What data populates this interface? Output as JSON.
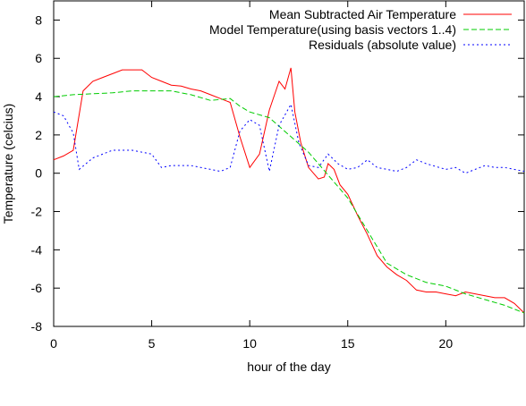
{
  "chart_data": {
    "type": "line",
    "title": "",
    "xlabel": "hour of the day",
    "ylabel": "Temperature (celcius)",
    "xlim": [
      0,
      24
    ],
    "ylim": [
      -8,
      9
    ],
    "x_ticks": [
      0,
      5,
      10,
      15,
      20
    ],
    "x_tick_labels": [
      "0",
      "5",
      "10",
      "15",
      "20"
    ],
    "y_ticks": [
      -8,
      -6,
      -4,
      -2,
      0,
      2,
      4,
      6,
      8
    ],
    "y_tick_labels": [
      "-8",
      "-6",
      "-4",
      "-2",
      "0",
      "2",
      "4",
      "6",
      "8"
    ],
    "grid": false,
    "legend_position": "top-right",
    "series": [
      {
        "name": "Mean Subtracted Air Temperature",
        "color": "#ff0000",
        "dash": "solid",
        "points": [
          [
            0,
            0.7
          ],
          [
            0.5,
            0.9
          ],
          [
            1,
            1.2
          ],
          [
            1.5,
            4.3
          ],
          [
            2,
            4.8
          ],
          [
            2.5,
            5.0
          ],
          [
            3,
            5.2
          ],
          [
            3.5,
            5.4
          ],
          [
            4,
            5.4
          ],
          [
            4.5,
            5.4
          ],
          [
            5,
            5.0
          ],
          [
            5.5,
            4.8
          ],
          [
            6,
            4.6
          ],
          [
            6.5,
            4.55
          ],
          [
            7,
            4.4
          ],
          [
            7.5,
            4.3
          ],
          [
            8,
            4.1
          ],
          [
            8.5,
            3.9
          ],
          [
            9,
            3.7
          ],
          [
            9.5,
            1.9
          ],
          [
            10,
            0.3
          ],
          [
            10.5,
            1.0
          ],
          [
            11,
            3.3
          ],
          [
            11.5,
            4.8
          ],
          [
            11.8,
            4.4
          ],
          [
            12.1,
            5.5
          ],
          [
            12.3,
            3.2
          ],
          [
            12.6,
            1.6
          ],
          [
            13,
            0.3
          ],
          [
            13.5,
            -0.3
          ],
          [
            13.8,
            -0.2
          ],
          [
            14,
            0.5
          ],
          [
            14.3,
            0.2
          ],
          [
            14.6,
            -0.6
          ],
          [
            15,
            -1.1
          ],
          [
            15.5,
            -2.2
          ],
          [
            16,
            -3.2
          ],
          [
            16.5,
            -4.3
          ],
          [
            17,
            -4.9
          ],
          [
            17.5,
            -5.3
          ],
          [
            18,
            -5.6
          ],
          [
            18.5,
            -6.1
          ],
          [
            19,
            -6.2
          ],
          [
            19.5,
            -6.2
          ],
          [
            20,
            -6.3
          ],
          [
            20.5,
            -6.4
          ],
          [
            21,
            -6.2
          ],
          [
            21.5,
            -6.3
          ],
          [
            22,
            -6.4
          ],
          [
            22.5,
            -6.5
          ],
          [
            23,
            -6.5
          ],
          [
            23.5,
            -6.8
          ],
          [
            24,
            -7.3
          ]
        ]
      },
      {
        "name": "Model Temperature(using basis vectors 1..4)",
        "color": "#00cc00",
        "dash": "6,3",
        "points": [
          [
            0,
            4.0
          ],
          [
            1,
            4.1
          ],
          [
            2,
            4.15
          ],
          [
            3,
            4.2
          ],
          [
            4,
            4.3
          ],
          [
            5,
            4.3
          ],
          [
            6,
            4.3
          ],
          [
            7,
            4.1
          ],
          [
            8,
            3.8
          ],
          [
            9,
            3.9
          ],
          [
            9.5,
            3.5
          ],
          [
            10,
            3.2
          ],
          [
            11,
            2.9
          ],
          [
            12,
            2.0
          ],
          [
            13,
            1.1
          ],
          [
            14,
            -0.1
          ],
          [
            15,
            -1.3
          ],
          [
            16,
            -3.0
          ],
          [
            17,
            -4.7
          ],
          [
            18,
            -5.3
          ],
          [
            19,
            -5.7
          ],
          [
            20,
            -5.9
          ],
          [
            21,
            -6.3
          ],
          [
            22,
            -6.6
          ],
          [
            23,
            -6.9
          ],
          [
            24,
            -7.3
          ]
        ]
      },
      {
        "name": "Residuals (absolute value)",
        "color": "#0000ff",
        "dash": "2,3",
        "points": [
          [
            0,
            3.2
          ],
          [
            0.5,
            3.0
          ],
          [
            1,
            2.1
          ],
          [
            1.3,
            0.2
          ],
          [
            2,
            0.8
          ],
          [
            3,
            1.2
          ],
          [
            4,
            1.2
          ],
          [
            5,
            1.0
          ],
          [
            5.5,
            0.3
          ],
          [
            6,
            0.4
          ],
          [
            7,
            0.4
          ],
          [
            8,
            0.2
          ],
          [
            8.5,
            0.1
          ],
          [
            9,
            0.3
          ],
          [
            9.5,
            2.2
          ],
          [
            10,
            2.8
          ],
          [
            10.5,
            2.5
          ],
          [
            11,
            0.1
          ],
          [
            11.5,
            2.5
          ],
          [
            12.1,
            3.6
          ],
          [
            12.5,
            1.6
          ],
          [
            13,
            0.4
          ],
          [
            13.5,
            0.3
          ],
          [
            14,
            1.0
          ],
          [
            14.5,
            0.5
          ],
          [
            15,
            0.2
          ],
          [
            15.5,
            0.3
          ],
          [
            16,
            0.7
          ],
          [
            16.5,
            0.3
          ],
          [
            17,
            0.2
          ],
          [
            17.5,
            0.1
          ],
          [
            18,
            0.3
          ],
          [
            18.5,
            0.7
          ],
          [
            19,
            0.5
          ],
          [
            20,
            0.2
          ],
          [
            20.5,
            0.3
          ],
          [
            21,
            0.0
          ],
          [
            21.5,
            0.2
          ],
          [
            22,
            0.4
          ],
          [
            22.5,
            0.3
          ],
          [
            23,
            0.3
          ],
          [
            24,
            0.1
          ]
        ]
      }
    ]
  }
}
